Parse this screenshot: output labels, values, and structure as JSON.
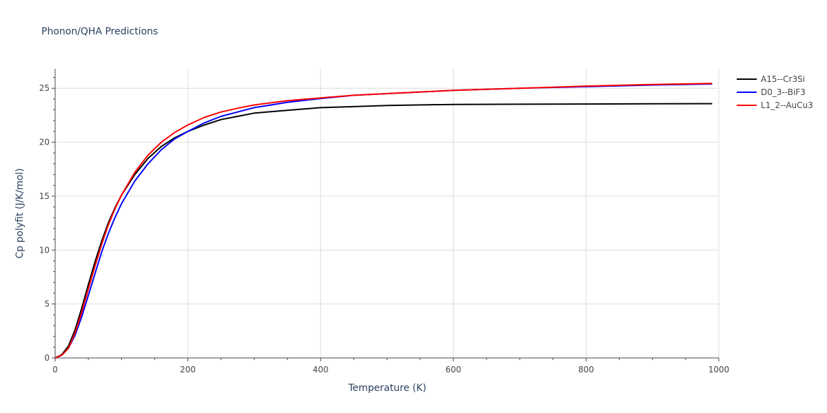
{
  "chart_data": {
    "type": "line",
    "title": "Phonon/QHA Predictions",
    "xlabel": "Temperature (K)",
    "ylabel": "Cp polyfit (J/K/mol)",
    "xlim": [
      0,
      1000
    ],
    "ylim": [
      0,
      26.8
    ],
    "xticks": [
      0,
      200,
      400,
      600,
      800,
      1000
    ],
    "yticks": [
      0,
      5,
      10,
      15,
      20,
      25
    ],
    "grid": true,
    "legend_position": "top-right",
    "series": [
      {
        "name": "A15--Cr3Si",
        "color": "#000000",
        "x": [
          0,
          10,
          20,
          30,
          40,
          50,
          60,
          70,
          80,
          90,
          100,
          120,
          140,
          160,
          180,
          200,
          225,
          250,
          275,
          300,
          350,
          400,
          450,
          500,
          600,
          700,
          800,
          900,
          990
        ],
        "y": [
          0,
          0.3,
          1.1,
          2.6,
          4.6,
          6.8,
          8.9,
          10.8,
          12.5,
          13.9,
          15.1,
          17.0,
          18.5,
          19.6,
          20.4,
          21.0,
          21.6,
          22.1,
          22.4,
          22.7,
          22.95,
          23.2,
          23.3,
          23.4,
          23.5,
          23.52,
          23.54,
          23.56,
          23.57
        ]
      },
      {
        "name": "D0_3--BiF3",
        "color": "#0000ff",
        "x": [
          0,
          10,
          20,
          30,
          40,
          50,
          60,
          70,
          80,
          90,
          100,
          120,
          140,
          160,
          180,
          200,
          225,
          250,
          275,
          300,
          350,
          400,
          450,
          500,
          600,
          700,
          800,
          900,
          990
        ],
        "y": [
          0,
          0.25,
          0.9,
          2.1,
          3.8,
          5.8,
          7.8,
          9.8,
          11.5,
          13.0,
          14.3,
          16.4,
          18.0,
          19.3,
          20.3,
          21.0,
          21.8,
          22.4,
          22.8,
          23.2,
          23.7,
          24.05,
          24.35,
          24.5,
          24.8,
          25.0,
          25.15,
          25.3,
          25.4
        ]
      },
      {
        "name": "L1_2--AuCu3",
        "color": "#ff0000",
        "x": [
          0,
          10,
          20,
          30,
          40,
          50,
          60,
          70,
          80,
          90,
          100,
          120,
          140,
          160,
          180,
          200,
          225,
          250,
          275,
          300,
          350,
          400,
          450,
          500,
          600,
          700,
          800,
          900,
          990
        ],
        "y": [
          0,
          0.25,
          0.9,
          2.3,
          4.2,
          6.4,
          8.5,
          10.5,
          12.3,
          13.8,
          15.1,
          17.2,
          18.8,
          20.0,
          20.9,
          21.6,
          22.3,
          22.8,
          23.15,
          23.45,
          23.85,
          24.1,
          24.35,
          24.5,
          24.8,
          25.0,
          25.2,
          25.35,
          25.45
        ]
      }
    ]
  }
}
